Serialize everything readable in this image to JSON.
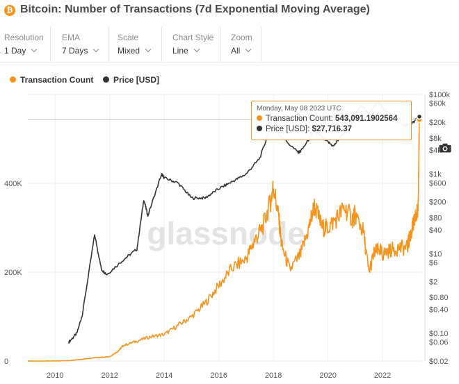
{
  "header": {
    "icon_glyph": "₿",
    "title": "Bitcoin: Number of Transactions (7d Exponential Moving Average)"
  },
  "controls": [
    {
      "label": "Resolution",
      "value": "1 Day"
    },
    {
      "label": "EMA",
      "value": "7 Days"
    },
    {
      "label": "Scale",
      "value": "Mixed"
    },
    {
      "label": "Chart Style",
      "value": "Line"
    },
    {
      "label": "Zoom",
      "value": "All"
    }
  ],
  "legend": [
    {
      "label": "Transaction Count",
      "color": "#f7931a"
    },
    {
      "label": "Price [USD]",
      "color": "#333333"
    }
  ],
  "toolbar": {
    "camera_icon": "camera-icon"
  },
  "watermark": "glassnode",
  "tooltip": {
    "date": "Monday, May 08 2023 UTC",
    "count_label": "Transaction Count:",
    "count_value": "543,091.1902564",
    "price_label": "Price [USD]:",
    "price_value": "$27,716.37"
  },
  "chart_data": {
    "type": "line",
    "xlim": [
      2009.0,
      2023.4
    ],
    "x_ticks": [
      "2010",
      "2012",
      "2014",
      "2016",
      "2018",
      "2020",
      "2022"
    ],
    "y_left": {
      "scale": "linear",
      "ylim": [
        0,
        600000
      ],
      "ticks": [
        0,
        200000,
        400000
      ],
      "tick_labels": [
        "0",
        "200K",
        "400K"
      ]
    },
    "y_right": {
      "scale": "log",
      "ylim": [
        0.02,
        100000
      ],
      "ticks": [
        100000,
        60000,
        20000,
        8000,
        4000,
        1000,
        600,
        200,
        80,
        40,
        10,
        6,
        2,
        0.8,
        0.4,
        0.1,
        0.06,
        0.02
      ],
      "tick_labels": [
        "$100k",
        "$60k",
        "$20k",
        "$8k",
        "$4k",
        "$1k",
        "$600",
        "$200",
        "$80",
        "$40",
        "$10",
        "$6",
        "$2",
        "$0.80",
        "$0.40",
        "$0.10",
        "$0.06",
        "$0.02"
      ]
    },
    "grid": true,
    "series": [
      {
        "name": "Transaction Count",
        "color": "#f7931a",
        "axis": "left",
        "x": [
          2009.0,
          2010.0,
          2010.5,
          2011.0,
          2011.5,
          2012.0,
          2012.3,
          2012.5,
          2013.0,
          2013.5,
          2014.0,
          2014.5,
          2015.0,
          2015.5,
          2016.0,
          2016.5,
          2017.0,
          2017.3,
          2017.6,
          2017.9,
          2018.0,
          2018.2,
          2018.3,
          2018.6,
          2019.0,
          2019.3,
          2019.5,
          2019.8,
          2020.0,
          2020.3,
          2020.6,
          2020.9,
          2021.0,
          2021.3,
          2021.5,
          2021.7,
          2021.9,
          2022.0,
          2022.3,
          2022.6,
          2022.9,
          2023.0,
          2023.1,
          2023.2,
          2023.3,
          2023.35
        ],
        "y": [
          0,
          200,
          1000,
          4000,
          8000,
          10000,
          22000,
          35000,
          45000,
          55000,
          60000,
          80000,
          100000,
          130000,
          170000,
          210000,
          230000,
          270000,
          300000,
          360000,
          395000,
          320000,
          260000,
          205000,
          240000,
          300000,
          350000,
          300000,
          300000,
          320000,
          345000,
          320000,
          330000,
          290000,
          200000,
          245000,
          250000,
          240000,
          250000,
          255000,
          255000,
          280000,
          300000,
          320000,
          340000,
          543091
        ]
      },
      {
        "name": "Price [USD]",
        "color": "#333333",
        "axis": "right",
        "x": [
          2010.5,
          2010.8,
          2011.0,
          2011.45,
          2011.7,
          2011.9,
          2012.5,
          2013.0,
          2013.25,
          2013.4,
          2013.9,
          2014.0,
          2014.5,
          2015.0,
          2015.5,
          2016.0,
          2016.5,
          2017.0,
          2017.5,
          2017.95,
          2018.2,
          2018.9,
          2019.0,
          2019.5,
          2019.9,
          2020.2,
          2020.5,
          2020.9,
          2021.2,
          2021.5,
          2021.85,
          2022.0,
          2022.5,
          2022.9,
          2023.0,
          2023.35
        ],
        "y": [
          0.06,
          0.1,
          0.3,
          30,
          4,
          3,
          7,
          13,
          230,
          90,
          1000,
          800,
          600,
          250,
          250,
          430,
          650,
          1000,
          2500,
          19000,
          10000,
          3500,
          3700,
          12000,
          7200,
          5000,
          9500,
          19000,
          55000,
          32000,
          67000,
          47000,
          20000,
          16500,
          17000,
          27716
        ]
      }
    ]
  }
}
